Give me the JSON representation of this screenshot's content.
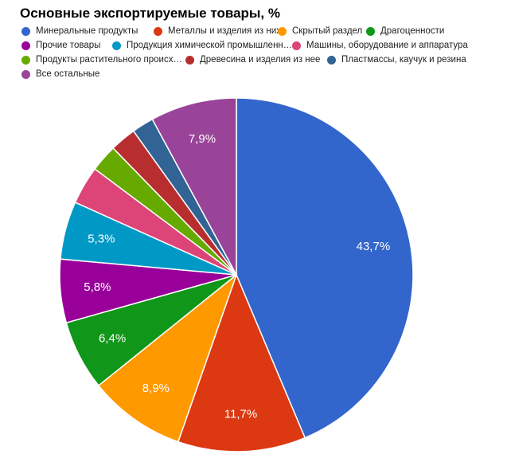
{
  "chart_data": {
    "type": "pie",
    "title": "Основные экспортируемые товары, %",
    "legend_position": "top",
    "slices": [
      {
        "label": "Минеральные продукты",
        "value": 43.7,
        "display": "43,7%",
        "color": "#3366cc"
      },
      {
        "label": "Металлы и изделия из них",
        "value": 11.7,
        "display": "11,7%",
        "color": "#dc3912"
      },
      {
        "label": "Скрытый раздел",
        "value": 8.9,
        "display": "8,9%",
        "color": "#ff9900"
      },
      {
        "label": "Драгоценности",
        "value": 6.4,
        "display": "6,4%",
        "color": "#109618"
      },
      {
        "label": "Прочие товары",
        "value": 5.8,
        "display": "5,8%",
        "color": "#990099"
      },
      {
        "label": "Продукция химической промышленн…",
        "value": 5.3,
        "display": "5,3%",
        "color": "#0099c6"
      },
      {
        "label": "Машины, оборудование и аппаратура",
        "value": 3.5,
        "display": "",
        "color": "#dd4477"
      },
      {
        "label": "Продукты растительного происх…",
        "value": 2.5,
        "display": "",
        "color": "#66aa00"
      },
      {
        "label": "Древесина и изделия из нее",
        "value": 2.4,
        "display": "",
        "color": "#b82e2e"
      },
      {
        "label": "Пластмассы, каучук и резина",
        "value": 2.0,
        "display": "",
        "color": "#316395"
      },
      {
        "label": "Все остальные",
        "value": 7.9,
        "display": "7,9%",
        "color": "#994499"
      }
    ]
  }
}
